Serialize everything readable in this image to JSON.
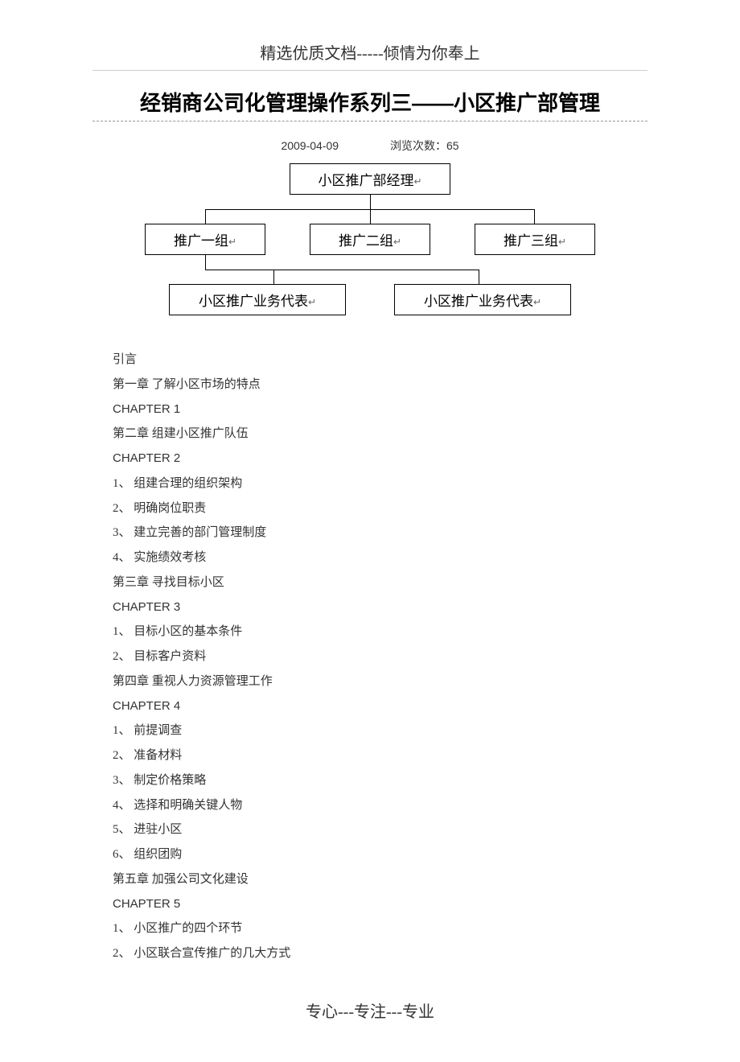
{
  "header": {
    "tagline": "精选优质文档-----倾情为你奉上"
  },
  "title": "经销商公司化管理操作系列三——小区推广部管理",
  "meta": {
    "date": "2009-04-09",
    "views_label": "浏览次数：",
    "views_count": "65"
  },
  "org_chart": {
    "top": "小区推广部经理",
    "middle": [
      "推广一组",
      "推广二组",
      "推广三组"
    ],
    "bottom": [
      "小区推广业务代表",
      "小区推广业务代表"
    ],
    "return_symbol": "↵",
    "box_border_color": "#000000",
    "connector_color": "#000000"
  },
  "toc": {
    "lines": [
      {
        "text": "引言",
        "font": "simsun"
      },
      {
        "text": "第一章  了解小区市场的特点",
        "font": "simsun"
      },
      {
        "text": "CHAPTER 1",
        "font": "arial"
      },
      {
        "text": "第二章  组建小区推广队伍",
        "font": "simsun"
      },
      {
        "text": "CHAPTER 2",
        "font": "arial"
      },
      {
        "text": "1、  组建合理的组织架构",
        "font": "simsun"
      },
      {
        "text": "2、  明确岗位职责",
        "font": "simsun"
      },
      {
        "text": "3、  建立完善的部门管理制度",
        "font": "simsun"
      },
      {
        "text": "4、  实施绩效考核",
        "font": "simsun"
      },
      {
        "text": "第三章  寻找目标小区",
        "font": "simsun"
      },
      {
        "text": "CHAPTER 3",
        "font": "arial"
      },
      {
        "text": "1、  目标小区的基本条件",
        "font": "simsun"
      },
      {
        "text": "2、  目标客户资料",
        "font": "simsun"
      },
      {
        "text": "第四章  重视人力资源管理工作",
        "font": "simsun"
      },
      {
        "text": "CHAPTER 4",
        "font": "arial"
      },
      {
        "text": "1、  前提调查",
        "font": "simsun"
      },
      {
        "text": "2、  准备材料",
        "font": "simsun"
      },
      {
        "text": "3、  制定价格策略",
        "font": "simsun"
      },
      {
        "text": "4、  选择和明确关键人物",
        "font": "simsun"
      },
      {
        "text": "5、  进驻小区",
        "font": "simsun"
      },
      {
        "text": "6、  组织团购",
        "font": "simsun"
      },
      {
        "text": "第五章  加强公司文化建设",
        "font": "simsun"
      },
      {
        "text": "CHAPTER 5",
        "font": "arial"
      },
      {
        "text": "1、  小区推广的四个环节",
        "font": "simsun"
      },
      {
        "text": "2、  小区联合宣传推广的几大方式",
        "font": "simsun"
      }
    ]
  },
  "footer": "专心---专注---专业",
  "colors": {
    "background": "#ffffff",
    "text": "#333333",
    "title": "#000000",
    "underline": "#cccccc",
    "dashed": "#999999"
  }
}
